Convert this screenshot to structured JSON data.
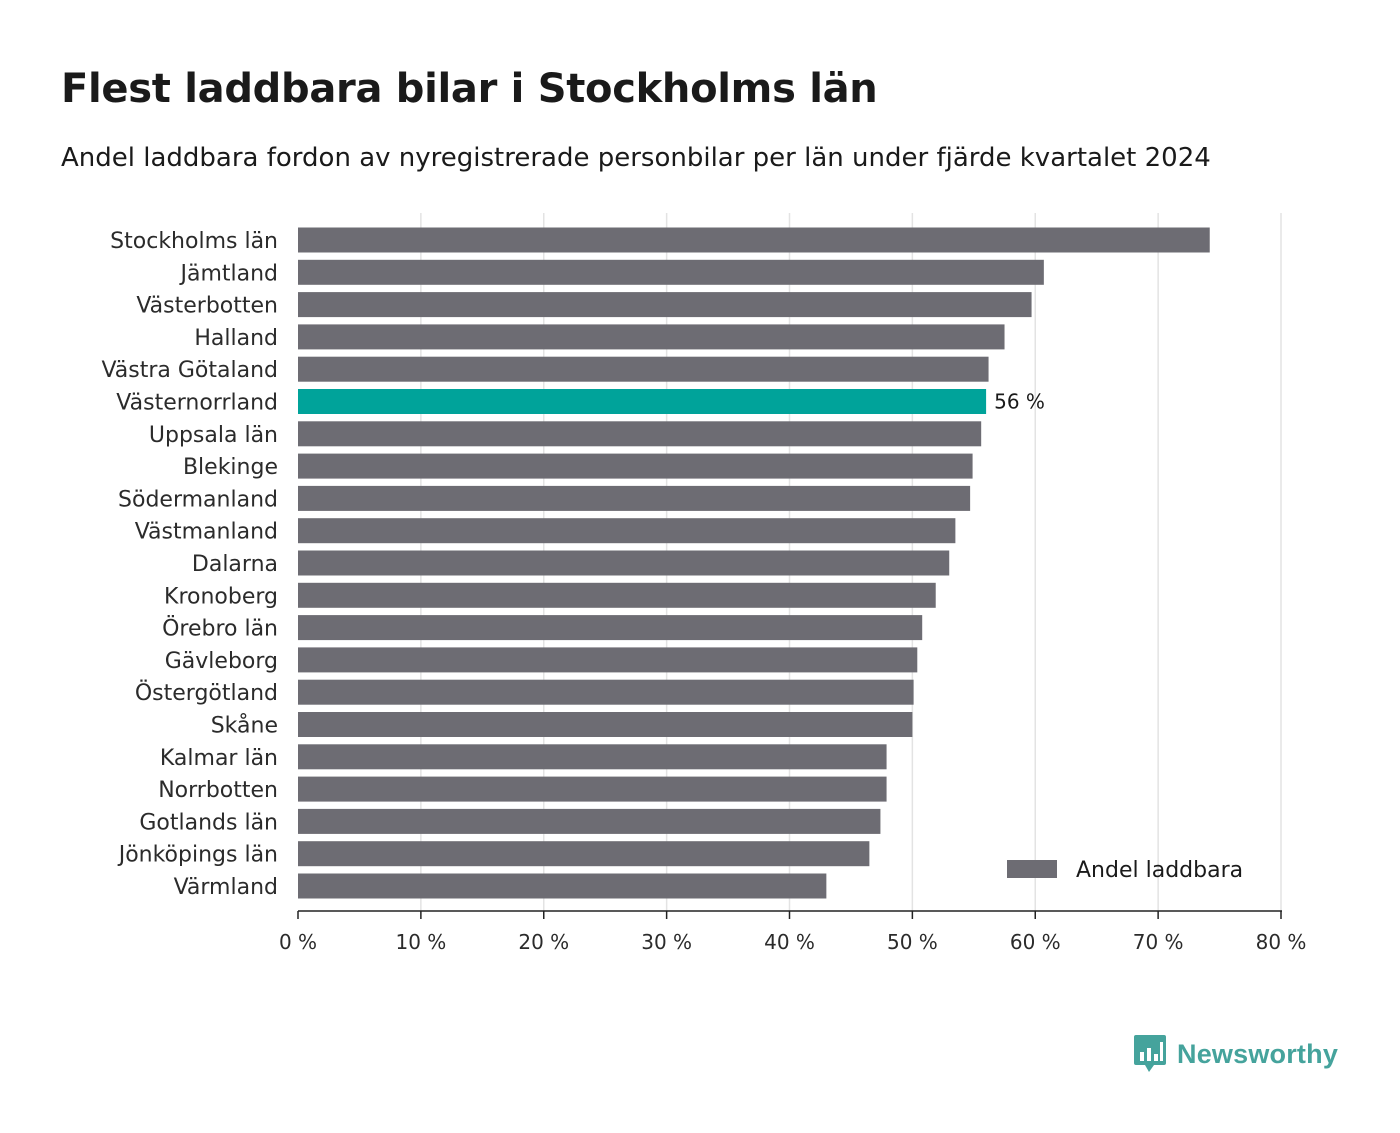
{
  "chart_data": {
    "type": "bar",
    "orientation": "horizontal",
    "title": "Flest laddbara bilar i Stockholms län",
    "subtitle": "Andel laddbara fordon av nyregistrerade personbilar per län under fjärde kvartalet 2024",
    "xlabel": "",
    "ylabel": "",
    "xlim": [
      0,
      80
    ],
    "ticks": [
      0,
      10,
      20,
      30,
      40,
      50,
      60,
      70,
      80
    ],
    "tick_labels": [
      "0 %",
      "10 %",
      "20 %",
      "30 %",
      "40 %",
      "50 %",
      "60 %",
      "70 %",
      "80 %"
    ],
    "categories": [
      "Stockholms län",
      "Jämtland",
      "Västerbotten",
      "Halland",
      "Västra Götaland",
      "Västernorrland",
      "Uppsala län",
      "Blekinge",
      "Södermanland",
      "Västmanland",
      "Dalarna",
      "Kronoberg",
      "Örebro län",
      "Gävleborg",
      "Östergötland",
      "Skåne",
      "Kalmar län",
      "Norrbotten",
      "Gotlands län",
      "Jönköpings län",
      "Värmland"
    ],
    "series": [
      {
        "name": "Andel laddbara",
        "values": [
          74.2,
          60.7,
          59.7,
          57.5,
          56.2,
          56.0,
          55.6,
          54.9,
          54.7,
          53.5,
          53.0,
          51.9,
          50.8,
          50.4,
          50.1,
          50.0,
          47.9,
          47.9,
          47.4,
          46.5,
          43.0
        ]
      }
    ],
    "highlight": {
      "category": "Västernorrland",
      "label": "56 %",
      "color": "#00a39a"
    },
    "bar_color": "#6d6c73",
    "grid": true,
    "legend": {
      "position": "bottom-right",
      "entries": [
        "Andel laddbara"
      ]
    }
  },
  "brand": {
    "name": "Newsworthy",
    "color": "#45a39c",
    "icon": "newsworthy-logo-icon"
  }
}
